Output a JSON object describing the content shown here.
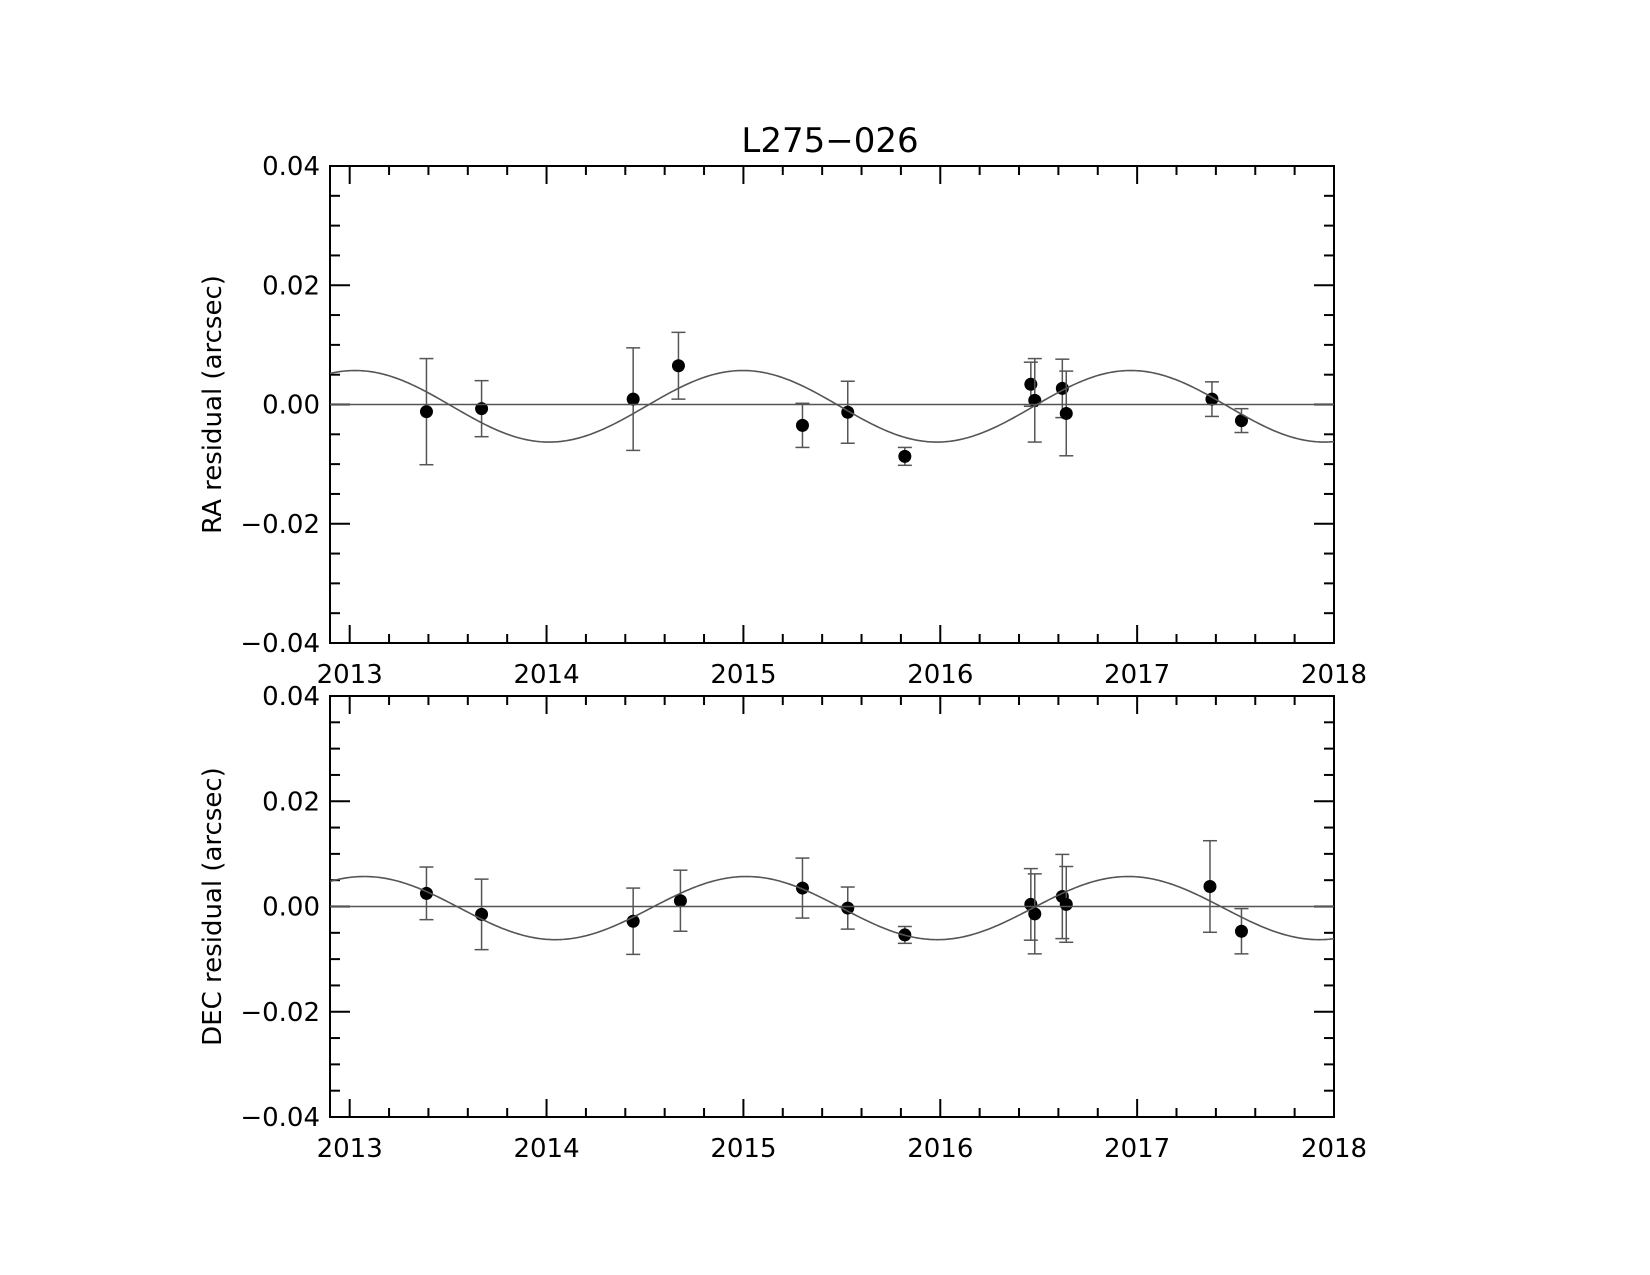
{
  "title": "L275−026",
  "colors": {
    "background": "#ffffff",
    "axes": "#000000",
    "points": "#000000",
    "error_bars": "#555555",
    "model_curve": "#555555",
    "zero_line": "#555555"
  },
  "chart_data": [
    {
      "type": "scatter",
      "title": "L275−026",
      "xlabel": "",
      "ylabel": "RA residual (arcsec)",
      "xlim": [
        2012.9,
        2018.0
      ],
      "ylim": [
        -0.04,
        0.04
      ],
      "x_ticks": [
        2013,
        2014,
        2015,
        2016,
        2017,
        2018
      ],
      "x_tick_labels": [
        "2013",
        "2014",
        "2015",
        "2016",
        "2017",
        "2018"
      ],
      "y_ticks": [
        0.04,
        0.02,
        0.0,
        -0.02,
        -0.04
      ],
      "y_tick_labels": [
        "0.04",
        "0.02",
        "0.00",
        "−0.02",
        "−0.04"
      ],
      "grid": false,
      "series": [
        {
          "kind": "points_with_errors",
          "x": [
            2013.39,
            2013.67,
            2014.44,
            2014.67,
            2015.3,
            2015.53,
            2015.82,
            2016.46,
            2016.48,
            2016.62,
            2016.64,
            2017.38,
            2017.53
          ],
          "y": [
            -0.0012,
            -0.0007,
            0.0009,
            0.0065,
            -0.0035,
            -0.0013,
            -0.0087,
            0.0034,
            0.0007,
            0.0027,
            -0.0015,
            0.0009,
            -0.0027
          ],
          "yerr": [
            0.0089,
            0.0047,
            0.0086,
            0.0056,
            0.0037,
            0.0052,
            0.0015,
            0.0037,
            0.007,
            0.0049,
            0.0071,
            0.0029,
            0.002
          ]
        },
        {
          "kind": "model_curve",
          "function": "sine",
          "amplitude": 0.006,
          "period_years": 1.97,
          "phase_zero_year": 2013.52,
          "offset": -0.0003
        },
        {
          "kind": "zero_line",
          "y": 0.0
        }
      ]
    },
    {
      "type": "scatter",
      "title": "",
      "xlabel": "",
      "ylabel": "DEC residual (arcsec)",
      "xlim": [
        2012.9,
        2018.0
      ],
      "ylim": [
        -0.04,
        0.04
      ],
      "x_ticks": [
        2013,
        2014,
        2015,
        2016,
        2017,
        2018
      ],
      "x_tick_labels": [
        "2013",
        "2014",
        "2015",
        "2016",
        "2017",
        "2018"
      ],
      "y_ticks": [
        0.04,
        0.02,
        0.0,
        -0.02,
        -0.04
      ],
      "y_tick_labels": [
        "0.04",
        "0.02",
        "0.00",
        "−0.02",
        "−0.04"
      ],
      "grid": false,
      "series": [
        {
          "kind": "points_with_errors",
          "x": [
            2013.39,
            2013.67,
            2014.44,
            2014.68,
            2015.3,
            2015.53,
            2015.82,
            2016.46,
            2016.48,
            2016.62,
            2016.64,
            2017.37,
            2017.53
          ],
          "y": [
            0.0025,
            -0.0015,
            -0.0028,
            0.0011,
            0.0035,
            -0.0003,
            -0.0054,
            0.0004,
            -0.0014,
            0.0019,
            0.0004,
            0.0038,
            -0.0047
          ],
          "yerr": [
            0.005,
            0.0067,
            0.0063,
            0.0058,
            0.0057,
            0.004,
            0.0016,
            0.0068,
            0.0076,
            0.008,
            0.0072,
            0.0087,
            0.0043
          ]
        },
        {
          "kind": "model_curve",
          "function": "sine",
          "amplitude": 0.006,
          "period_years": 1.94,
          "phase_zero_year": 2013.56,
          "offset": -0.0003
        },
        {
          "kind": "zero_line",
          "y": 0.0
        }
      ]
    }
  ]
}
